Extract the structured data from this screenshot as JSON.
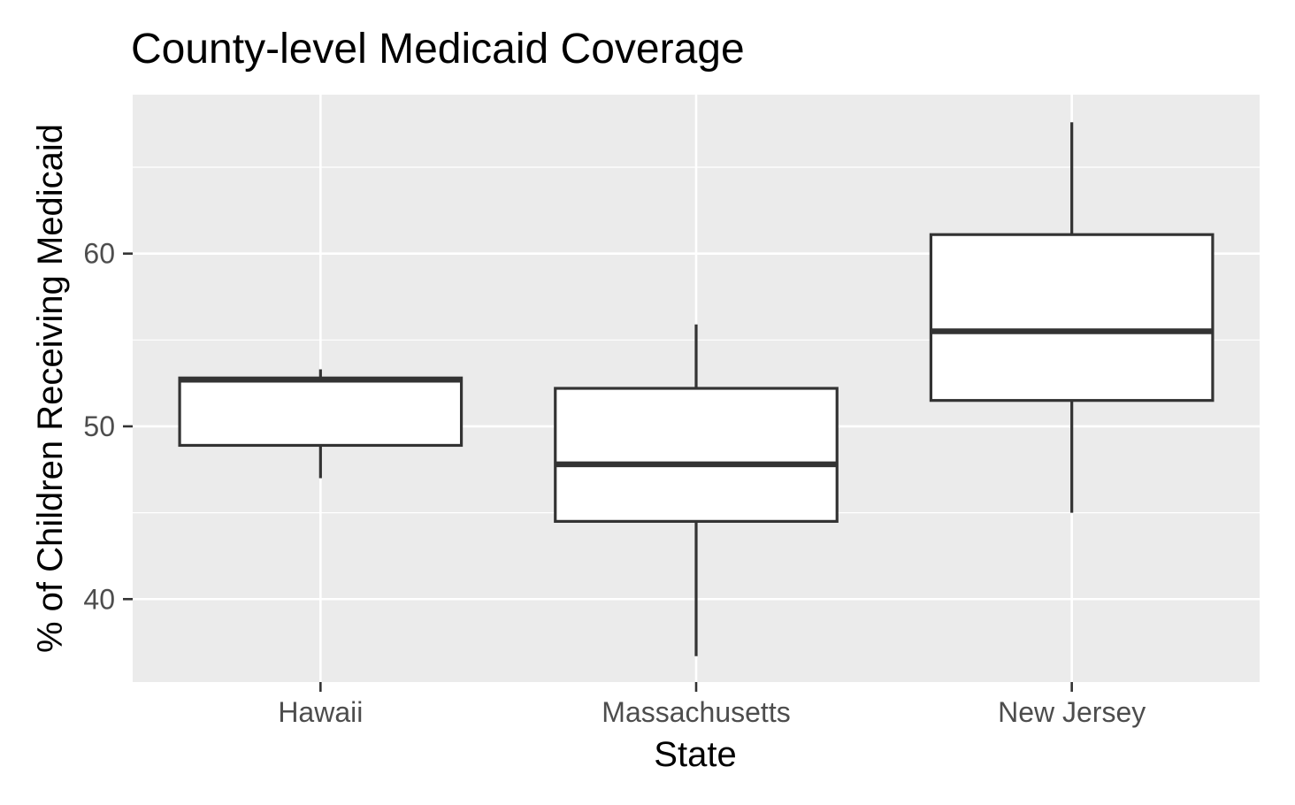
{
  "chart_data": {
    "type": "boxplot",
    "title": "County-level Medicaid Coverage",
    "xlabel": "State",
    "ylabel": "% of Children Receiving Medicaid",
    "categories": [
      "Hawaii",
      "Massachusetts",
      "New Jersey"
    ],
    "boxes": [
      {
        "category": "Hawaii",
        "whisker_low": 47.0,
        "q1": 48.9,
        "median": 52.7,
        "q3": 52.8,
        "whisker_high": 53.3
      },
      {
        "category": "Massachusetts",
        "whisker_low": 36.7,
        "q1": 44.5,
        "median": 47.8,
        "q3": 52.2,
        "whisker_high": 55.9
      },
      {
        "category": "New Jersey",
        "whisker_low": 45.0,
        "q1": 51.5,
        "median": 55.5,
        "q3": 61.1,
        "whisker_high": 67.6
      }
    ],
    "ylim": [
      35.2,
      69.2
    ],
    "yticks": [
      40,
      50,
      60
    ],
    "yminor": [
      45,
      55,
      65
    ],
    "grid": true,
    "legend": "none",
    "colors": {
      "panel": "#ebebeb",
      "grid": "#ffffff",
      "box_fill": "#ffffff",
      "box_line": "#333333",
      "tick_text": "#4d4d4d",
      "tick_mark": "#333333"
    }
  }
}
